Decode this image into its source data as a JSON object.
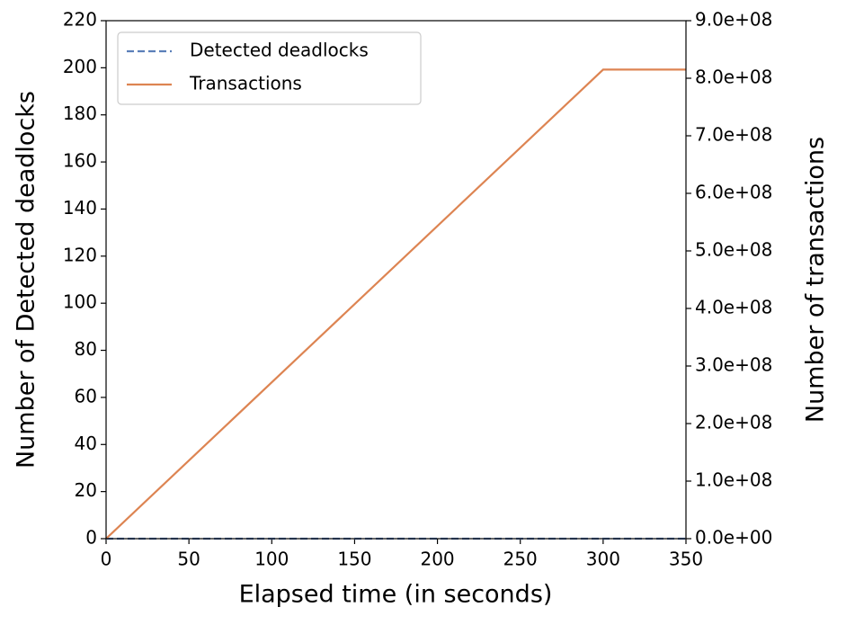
{
  "chart_data": {
    "type": "line",
    "x_label": "Elapsed time (in seconds)",
    "y_label": "Number of Detected deadlocks",
    "y2_label": "Number of transactions",
    "x": [
      0,
      300,
      350
    ],
    "series": [
      {
        "name": "Detected deadlocks",
        "color": "#5b7fb9",
        "linestyle": "dashed",
        "values": [
          0,
          0,
          0
        ]
      },
      {
        "name": "Transactions",
        "color": "#dd8452",
        "linestyle": "solid",
        "axis": "y2",
        "values": [
          0,
          815000000,
          815000000
        ]
      }
    ],
    "xlim": [
      0,
      350
    ],
    "xticks": [
      0,
      50,
      100,
      150,
      200,
      250,
      300,
      350
    ],
    "ylim": [
      0,
      220
    ],
    "yticks": [
      0,
      20,
      40,
      60,
      80,
      100,
      120,
      140,
      160,
      180,
      200,
      220
    ],
    "y2lim": [
      0,
      900000000
    ],
    "y2ticks": [
      {
        "value": 0,
        "label": "0.0e+00"
      },
      {
        "value": 100000000,
        "label": "1.0e+08"
      },
      {
        "value": 200000000,
        "label": "2.0e+08"
      },
      {
        "value": 300000000,
        "label": "3.0e+08"
      },
      {
        "value": 400000000,
        "label": "4.0e+08"
      },
      {
        "value": 500000000,
        "label": "5.0e+08"
      },
      {
        "value": 600000000,
        "label": "6.0e+08"
      },
      {
        "value": 700000000,
        "label": "7.0e+08"
      },
      {
        "value": 800000000,
        "label": "8.0e+08"
      },
      {
        "value": 900000000,
        "label": "9.0e+08"
      }
    ],
    "legend": "upper left"
  }
}
